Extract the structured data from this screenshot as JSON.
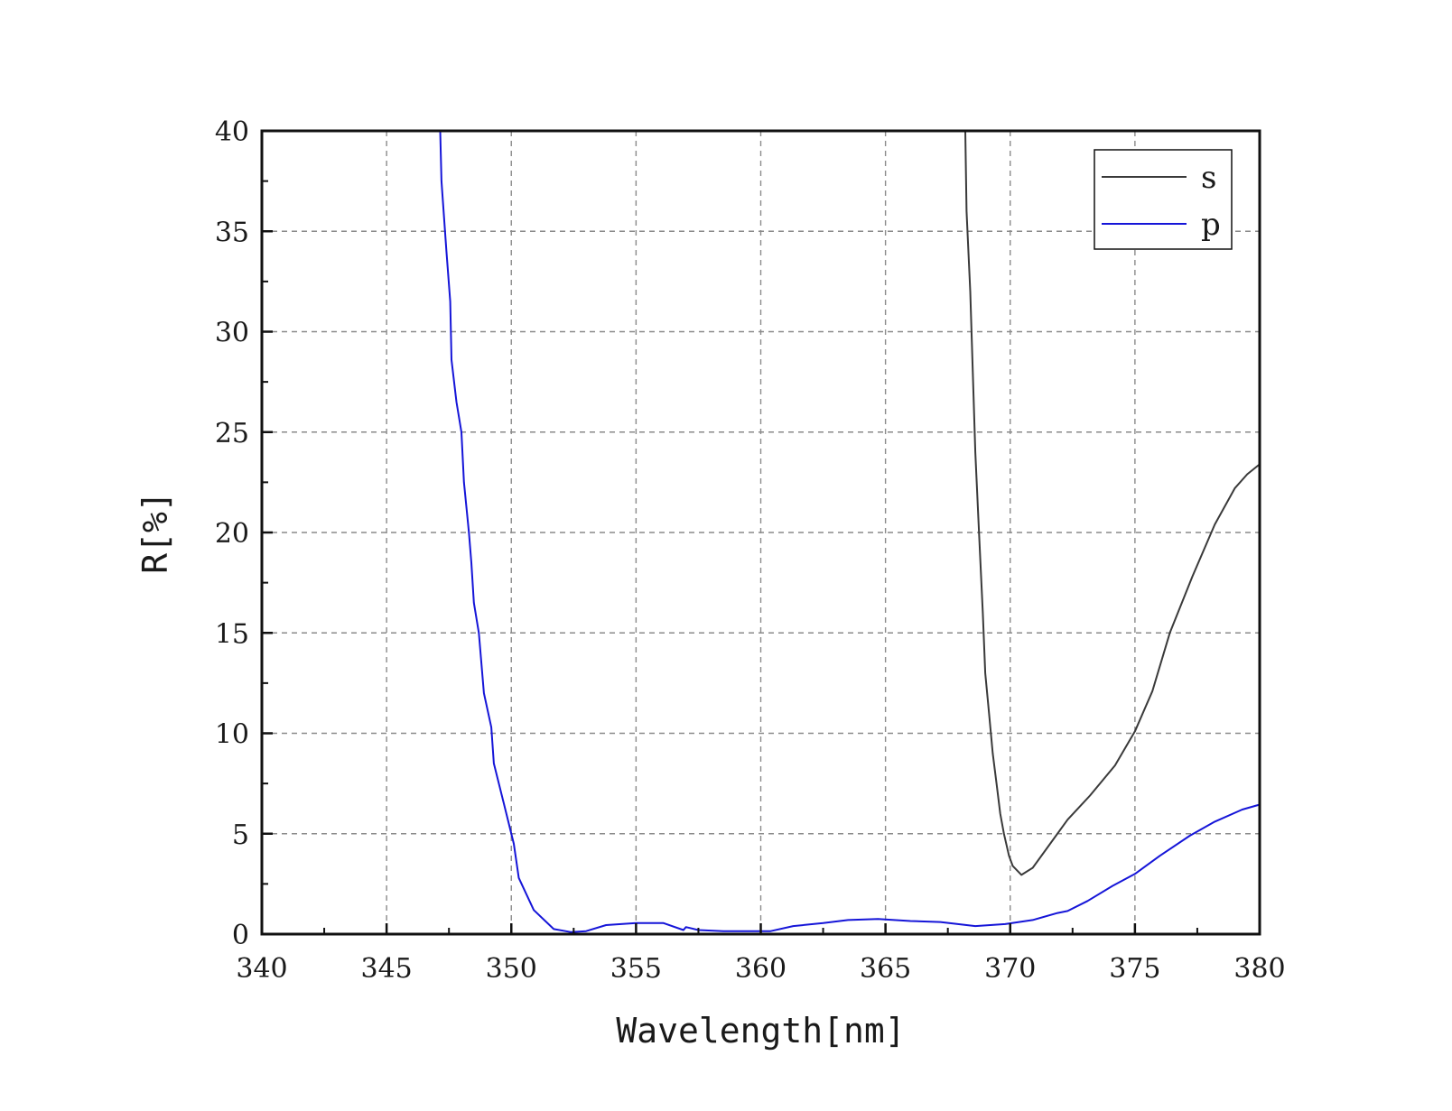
{
  "chart_data": {
    "type": "line",
    "xlabel": "Wavelength[nm]",
    "ylabel": "R[%]",
    "xlim": [
      340,
      380
    ],
    "ylim": [
      0,
      40
    ],
    "x_ticks": [
      340,
      345,
      350,
      355,
      360,
      365,
      370,
      375,
      380
    ],
    "x_tick_labels": [
      "340",
      "345",
      "350",
      "355",
      "360",
      "365",
      "370",
      "375",
      "380"
    ],
    "y_ticks": [
      0,
      5,
      10,
      15,
      20,
      25,
      30,
      35,
      40
    ],
    "y_tick_labels": [
      "0",
      "5",
      "10",
      "15",
      "20",
      "25",
      "30",
      "35",
      "40"
    ],
    "grid": true,
    "legend_position": "top-right",
    "series": [
      {
        "name": "s",
        "color": "#3a3a3a",
        "points": [
          [
            368.2,
            40
          ],
          [
            368.25,
            36
          ],
          [
            368.4,
            32
          ],
          [
            368.5,
            28
          ],
          [
            368.6,
            24
          ],
          [
            368.75,
            20
          ],
          [
            368.9,
            16
          ],
          [
            369.0,
            13
          ],
          [
            369.15,
            11
          ],
          [
            369.3,
            9
          ],
          [
            369.45,
            7.5
          ],
          [
            369.6,
            6
          ],
          [
            369.75,
            5
          ],
          [
            369.95,
            3.9
          ],
          [
            370.1,
            3.4
          ],
          [
            370.45,
            2.95
          ],
          [
            370.9,
            3.3
          ],
          [
            371.6,
            4.5
          ],
          [
            372.3,
            5.7
          ],
          [
            373.2,
            6.9
          ],
          [
            374.2,
            8.4
          ],
          [
            375.0,
            10.1
          ],
          [
            375.7,
            12.1
          ],
          [
            376.4,
            15.0
          ],
          [
            377.3,
            17.8
          ],
          [
            378.2,
            20.4
          ],
          [
            379.0,
            22.2
          ],
          [
            379.5,
            22.9
          ],
          [
            380.0,
            23.4
          ]
        ]
      },
      {
        "name": "p",
        "color": "#1515d8",
        "points": [
          [
            347.15,
            40
          ],
          [
            347.2,
            37.5
          ],
          [
            347.4,
            34
          ],
          [
            347.55,
            31.5
          ],
          [
            347.6,
            28.6
          ],
          [
            347.8,
            26.5
          ],
          [
            348.0,
            25.0
          ],
          [
            348.1,
            22.5
          ],
          [
            348.3,
            20.0
          ],
          [
            348.4,
            18.5
          ],
          [
            348.5,
            16.5
          ],
          [
            348.7,
            15.0
          ],
          [
            348.9,
            12.0
          ],
          [
            349.2,
            10.3
          ],
          [
            349.3,
            8.5
          ],
          [
            349.7,
            6.5
          ],
          [
            350.1,
            4.5
          ],
          [
            350.3,
            2.8
          ],
          [
            350.9,
            1.2
          ],
          [
            351.7,
            0.25
          ],
          [
            352.4,
            0.1
          ],
          [
            353.0,
            0.15
          ],
          [
            353.8,
            0.45
          ],
          [
            355.0,
            0.55
          ],
          [
            356.1,
            0.55
          ],
          [
            356.9,
            0.2
          ],
          [
            357.0,
            0.35
          ],
          [
            357.5,
            0.2
          ],
          [
            358.5,
            0.15
          ],
          [
            360.4,
            0.15
          ],
          [
            361.3,
            0.4
          ],
          [
            362.5,
            0.55
          ],
          [
            363.5,
            0.7
          ],
          [
            364.7,
            0.75
          ],
          [
            366.0,
            0.65
          ],
          [
            367.2,
            0.6
          ],
          [
            368.6,
            0.4
          ],
          [
            369.8,
            0.5
          ],
          [
            370.9,
            0.7
          ],
          [
            371.9,
            1.05
          ],
          [
            372.3,
            1.15
          ],
          [
            373.1,
            1.65
          ],
          [
            374.1,
            2.4
          ],
          [
            375.0,
            3.0
          ],
          [
            376.0,
            3.9
          ],
          [
            377.2,
            4.9
          ],
          [
            378.2,
            5.6
          ],
          [
            379.3,
            6.2
          ],
          [
            380.0,
            6.45
          ]
        ]
      }
    ]
  }
}
